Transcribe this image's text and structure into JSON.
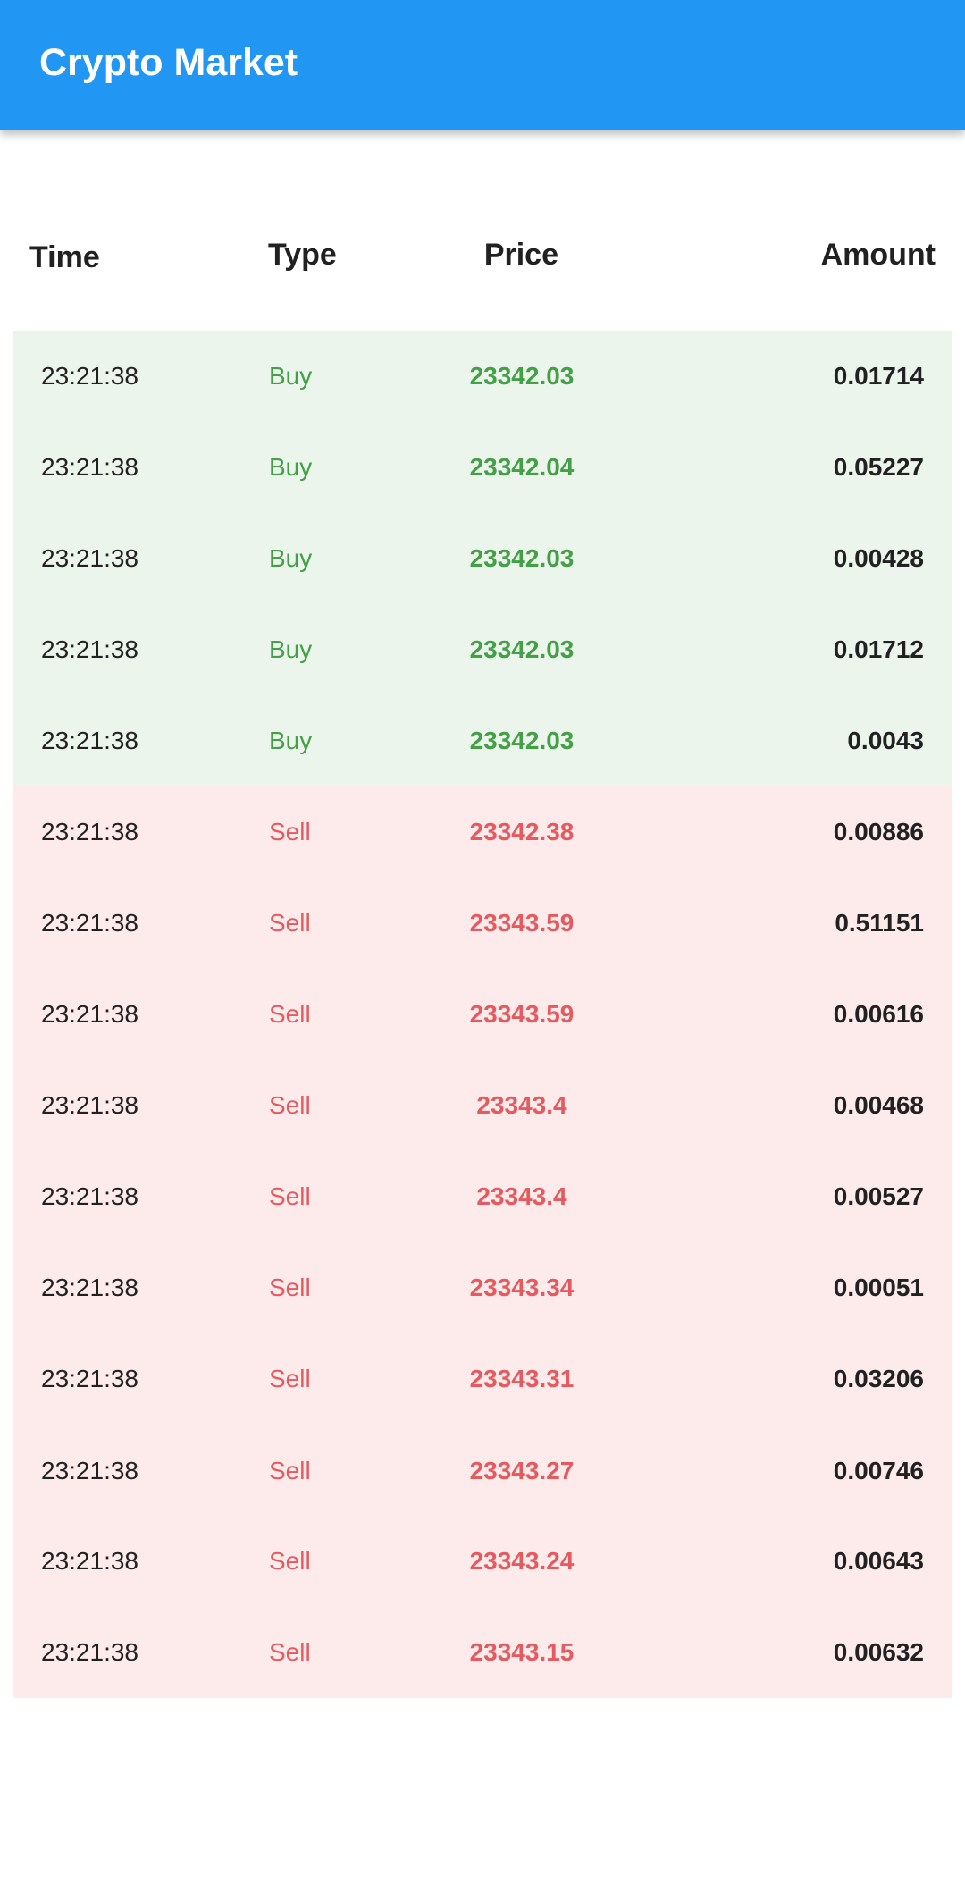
{
  "appbar": {
    "title": "Crypto Market"
  },
  "columns": {
    "time": "Time",
    "type": "Type",
    "price": "Price",
    "amount": "Amount"
  },
  "colors": {
    "appbar": "#2196F3",
    "buy_bg": "#ECF5EC",
    "sell_bg": "#FDEBEC",
    "buy_text": "#43A047",
    "sell_text": "#E55A5F"
  },
  "trades": [
    {
      "time": "23:21:38",
      "type": "Buy",
      "price": "23342.03",
      "amount": "0.01714"
    },
    {
      "time": "23:21:38",
      "type": "Buy",
      "price": "23342.04",
      "amount": "0.05227"
    },
    {
      "time": "23:21:38",
      "type": "Buy",
      "price": "23342.03",
      "amount": "0.00428"
    },
    {
      "time": "23:21:38",
      "type": "Buy",
      "price": "23342.03",
      "amount": "0.01712"
    },
    {
      "time": "23:21:38",
      "type": "Buy",
      "price": "23342.03",
      "amount": "0.0043"
    },
    {
      "time": "23:21:38",
      "type": "Sell",
      "price": "23342.38",
      "amount": "0.00886"
    },
    {
      "time": "23:21:38",
      "type": "Sell",
      "price": "23343.59",
      "amount": "0.51151"
    },
    {
      "time": "23:21:38",
      "type": "Sell",
      "price": "23343.59",
      "amount": "0.00616"
    },
    {
      "time": "23:21:38",
      "type": "Sell",
      "price": "23343.4",
      "amount": "0.00468"
    },
    {
      "time": "23:21:38",
      "type": "Sell",
      "price": "23343.4",
      "amount": "0.00527"
    },
    {
      "time": "23:21:38",
      "type": "Sell",
      "price": "23343.34",
      "amount": "0.00051"
    },
    {
      "time": "23:21:38",
      "type": "Sell",
      "price": "23343.31",
      "amount": "0.03206"
    },
    {
      "time": "23:21:38",
      "type": "Sell",
      "price": "23343.27",
      "amount": "0.00746"
    },
    {
      "time": "23:21:38",
      "type": "Sell",
      "price": "23343.24",
      "amount": "0.00643"
    },
    {
      "time": "23:21:38",
      "type": "Sell",
      "price": "23343.15",
      "amount": "0.00632"
    }
  ]
}
